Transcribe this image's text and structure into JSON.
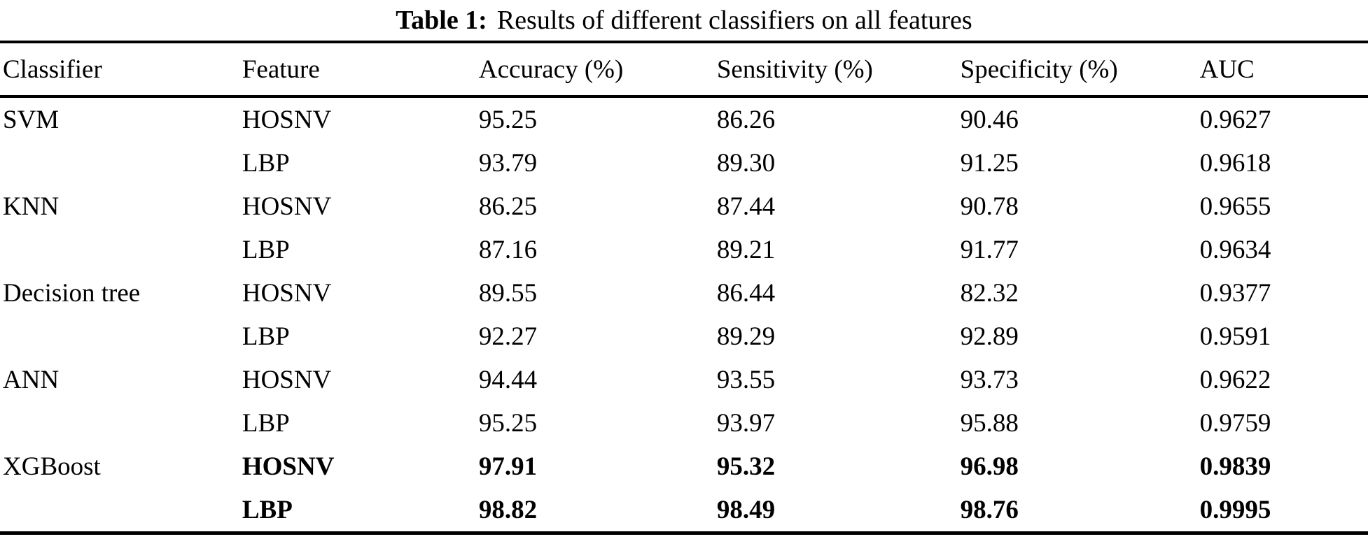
{
  "title": {
    "label": "Table 1:",
    "caption": "Results of different classifiers on all features"
  },
  "table": {
    "columns": {
      "classifier": "Classifier",
      "feature": "Feature",
      "accuracy": "Accuracy (%)",
      "sensitivity": "Sensitivity (%)",
      "specificity": "Specificity (%)",
      "auc": "AUC"
    },
    "rows": [
      {
        "classifier": "SVM",
        "feature": "HOSNV",
        "accuracy": "95.25",
        "sensitivity": "86.26",
        "specificity": "90.46",
        "auc": "0.9627"
      },
      {
        "classifier": "",
        "feature": "LBP",
        "accuracy": "93.79",
        "sensitivity": "89.30",
        "specificity": "91.25",
        "auc": "0.9618"
      },
      {
        "classifier": "KNN",
        "feature": "HOSNV",
        "accuracy": "86.25",
        "sensitivity": "87.44",
        "specificity": "90.78",
        "auc": "0.9655"
      },
      {
        "classifier": "",
        "feature": "LBP",
        "accuracy": "87.16",
        "sensitivity": "89.21",
        "specificity": "91.77",
        "auc": "0.9634"
      },
      {
        "classifier": "Decision tree",
        "feature": "HOSNV",
        "accuracy": "89.55",
        "sensitivity": "86.44",
        "specificity": "82.32",
        "auc": "0.9377"
      },
      {
        "classifier": "",
        "feature": "LBP",
        "accuracy": "92.27",
        "sensitivity": "89.29",
        "specificity": "92.89",
        "auc": "0.9591"
      },
      {
        "classifier": "ANN",
        "feature": "HOSNV",
        "accuracy": "94.44",
        "sensitivity": "93.55",
        "specificity": "93.73",
        "auc": "0.9622"
      },
      {
        "classifier": "",
        "feature": "LBP",
        "accuracy": "95.25",
        "sensitivity": "93.97",
        "specificity": "95.88",
        "auc": "0.9759"
      },
      {
        "classifier": "XGBoost",
        "feature": "HOSNV",
        "accuracy": "97.91",
        "sensitivity": "95.32",
        "specificity": "96.98",
        "auc": "0.9839"
      },
      {
        "classifier": "",
        "feature": "LBP",
        "accuracy": "98.82",
        "sensitivity": "98.49",
        "specificity": "98.76",
        "auc": "0.9995"
      }
    ]
  }
}
